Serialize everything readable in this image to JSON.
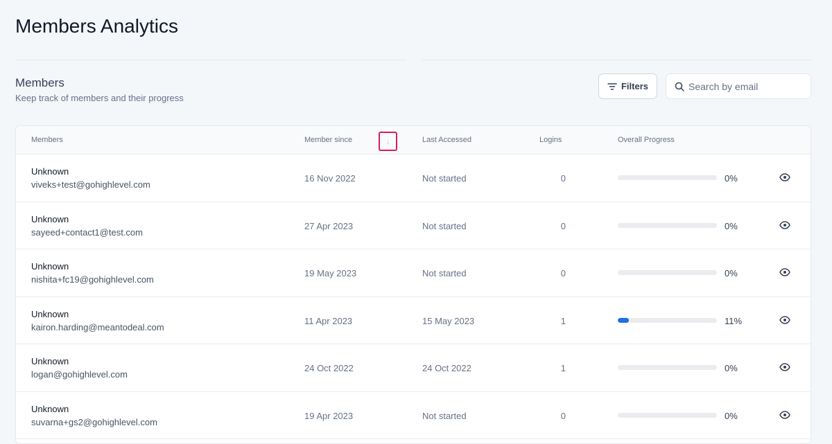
{
  "page": {
    "title": "Members Analytics"
  },
  "section": {
    "title": "Members",
    "subtitle": "Keep track of members and their progress"
  },
  "toolbar": {
    "filters_label": "Filters",
    "search_placeholder": "Search by email"
  },
  "table": {
    "columns": [
      "Members",
      "Member since",
      "Last Accessed",
      "Logins",
      "Overall Progress"
    ],
    "sort_icon": "arrow-down-icon",
    "accent": "#1e6fe8",
    "rows": [
      {
        "name": "Unknown",
        "email": "viveks+test@gohighlevel.com",
        "since": "16 Nov 2022",
        "last": "Not started",
        "logins": "0",
        "progress": 0,
        "pct": "0%"
      },
      {
        "name": "Unknown",
        "email": "sayeed+contact1@test.com",
        "since": "27 Apr 2023",
        "last": "Not started",
        "logins": "0",
        "progress": 0,
        "pct": "0%"
      },
      {
        "name": "Unknown",
        "email": "nishita+fc19@gohighlevel.com",
        "since": "19 May 2023",
        "last": "Not started",
        "logins": "0",
        "progress": 0,
        "pct": "0%"
      },
      {
        "name": "Unknown",
        "email": "kairon.harding@meantodeal.com",
        "since": "11 Apr 2023",
        "last": "15 May 2023",
        "logins": "1",
        "progress": 11,
        "pct": "11%"
      },
      {
        "name": "Unknown",
        "email": "logan@gohighlevel.com",
        "since": "24 Oct 2022",
        "last": "24 Oct 2022",
        "logins": "1",
        "progress": 0,
        "pct": "0%"
      },
      {
        "name": "Unknown",
        "email": "suvarna+gs2@gohighlevel.com",
        "since": "19 Apr 2023",
        "last": "Not started",
        "logins": "0",
        "progress": 0,
        "pct": "0%"
      }
    ]
  }
}
